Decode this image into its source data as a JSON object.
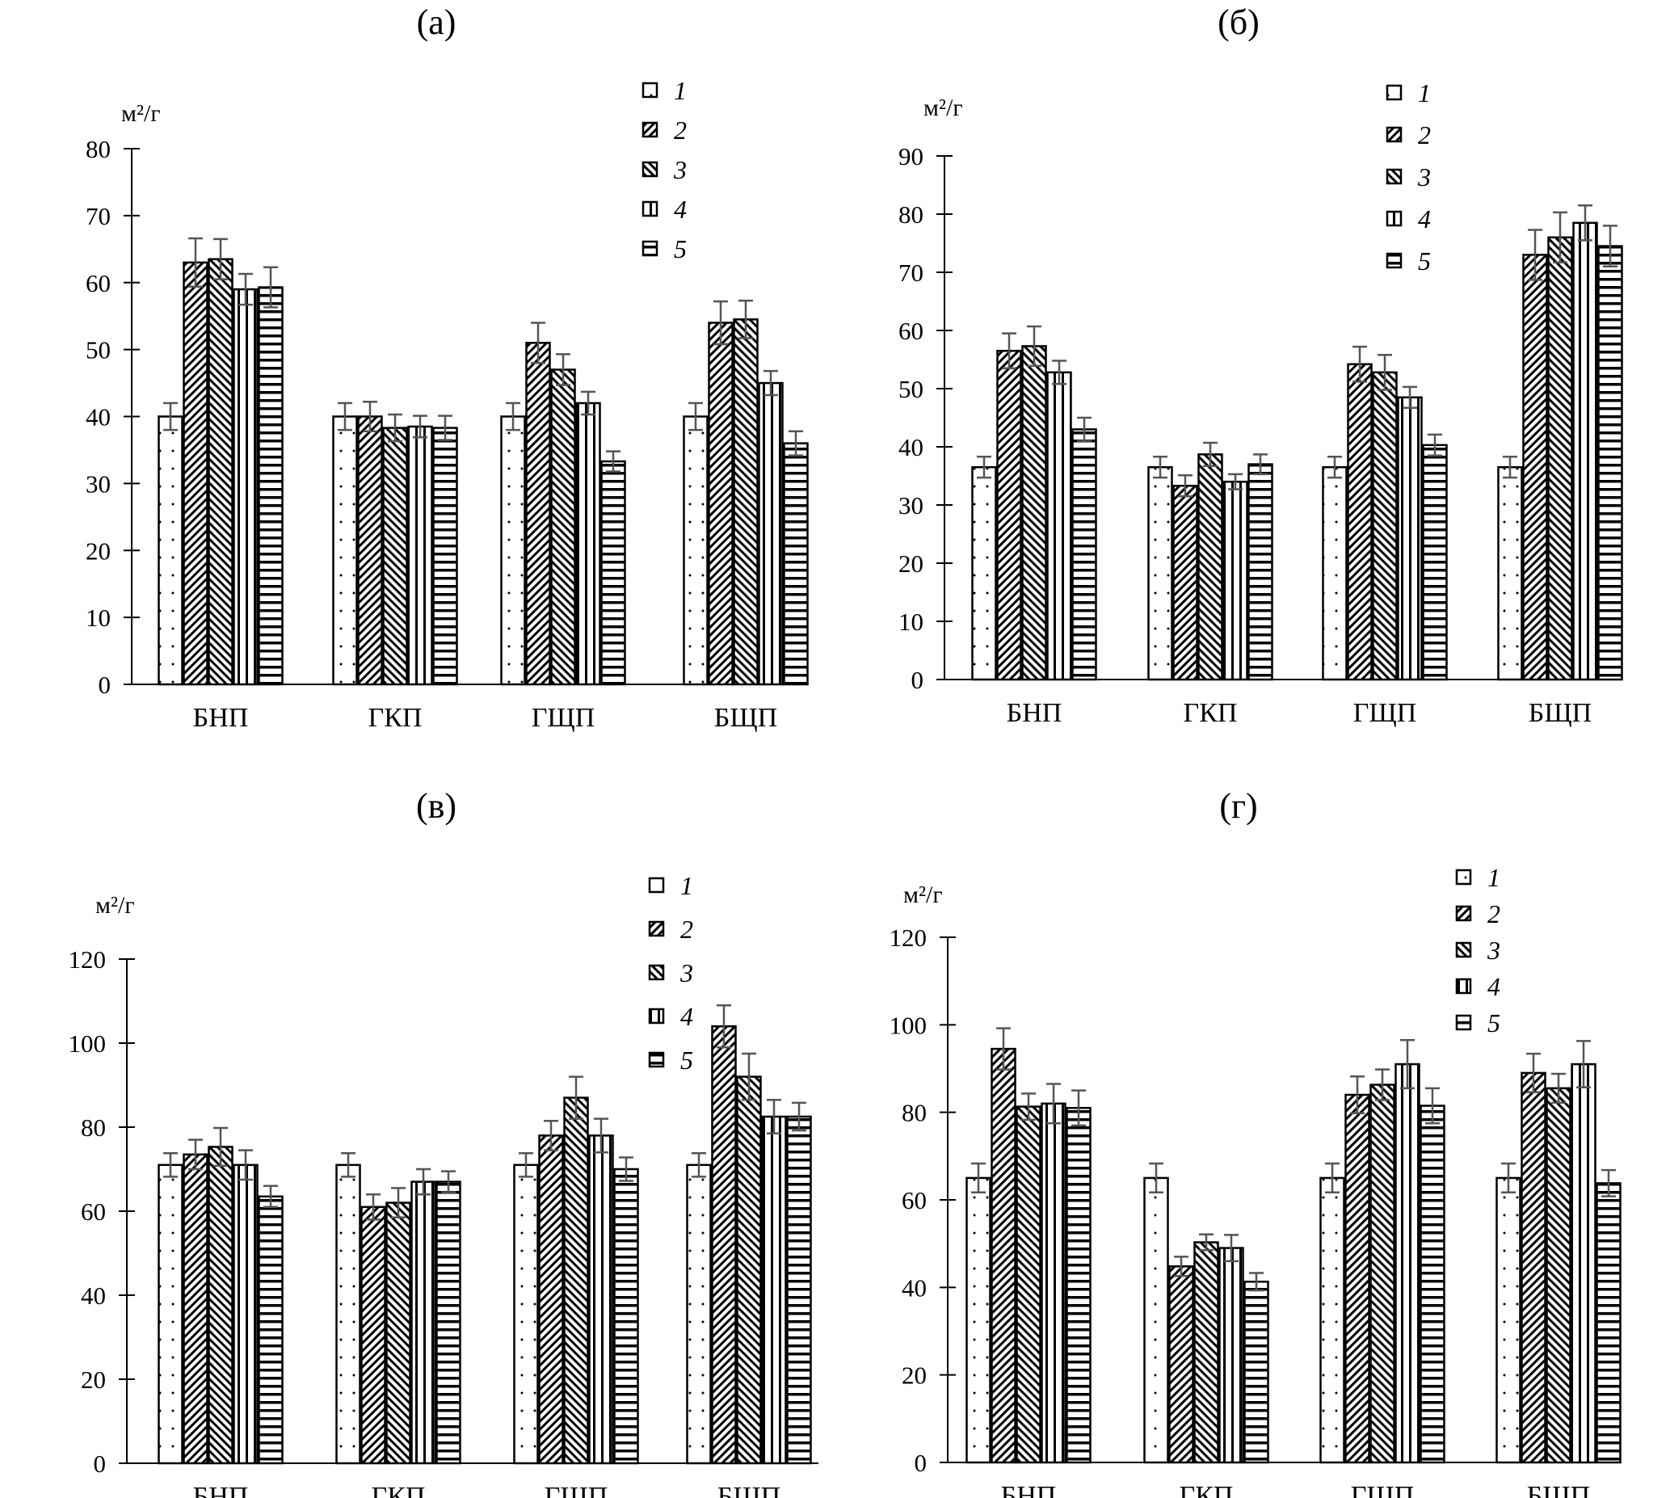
{
  "chart_data": [
    {
      "type": "bar",
      "title": "(а)",
      "ylabel": "м²/г",
      "ylim": [
        0,
        80
      ],
      "ytick_step": 10,
      "categories": [
        "БНП",
        "ГКП",
        "ГЩП",
        "БЩП"
      ],
      "legend_placement": "top-right",
      "series": [
        {
          "name": "1",
          "pattern": "dots",
          "values": [
            40,
            40,
            40,
            40
          ],
          "errors": [
            2,
            2,
            2,
            2
          ]
        },
        {
          "name": "2",
          "pattern": "diagonal-back",
          "values": [
            63,
            40,
            51,
            54
          ],
          "errors": [
            3.6,
            2.2,
            3,
            3.2
          ]
        },
        {
          "name": "3",
          "pattern": "diagonal-forward",
          "values": [
            63.5,
            38.3,
            47,
            54.5
          ],
          "errors": [
            3,
            2,
            2.3,
            2.8
          ]
        },
        {
          "name": "4",
          "pattern": "vertical",
          "values": [
            59,
            38.5,
            42,
            45
          ],
          "errors": [
            2.3,
            1.6,
            1.7,
            1.8
          ]
        },
        {
          "name": "5",
          "pattern": "horizontal",
          "values": [
            59.3,
            38.3,
            33.3,
            36
          ],
          "errors": [
            3,
            1.8,
            1.5,
            1.8
          ]
        }
      ]
    },
    {
      "type": "bar",
      "title": "(б)",
      "ylabel": "м²/г",
      "ylim": [
        0,
        90
      ],
      "ytick_step": 10,
      "categories": [
        "БНП",
        "ГКП",
        "ГЩП",
        "БЩП"
      ],
      "legend_placement": "top-right",
      "series": [
        {
          "name": "1",
          "pattern": "dots",
          "values": [
            36.5,
            36.5,
            36.5,
            36.5
          ],
          "errors": [
            1.8,
            1.8,
            1.8,
            1.8
          ]
        },
        {
          "name": "2",
          "pattern": "diagonal-back",
          "values": [
            56.5,
            33.3,
            54.2,
            73
          ],
          "errors": [
            3,
            1.8,
            3,
            4.3
          ]
        },
        {
          "name": "3",
          "pattern": "diagonal-forward",
          "values": [
            57.3,
            38.7,
            52.8,
            76
          ],
          "errors": [
            3.4,
            2,
            3,
            4.3
          ]
        },
        {
          "name": "4",
          "pattern": "vertical",
          "values": [
            52.8,
            34,
            48.5,
            78.5
          ],
          "errors": [
            2,
            1.3,
            1.8,
            3
          ]
        },
        {
          "name": "5",
          "pattern": "horizontal",
          "values": [
            43,
            37,
            40.3,
            74.5
          ],
          "errors": [
            2,
            1.7,
            1.8,
            3.5
          ]
        }
      ]
    },
    {
      "type": "bar",
      "title": "(в)",
      "ylabel": "м²/г",
      "ylim": [
        0,
        120
      ],
      "ytick_step": 20,
      "categories": [
        "БНП",
        "ГКП",
        "ГЩП",
        "БЩП"
      ],
      "legend_placement": "top-right",
      "series": [
        {
          "name": "1",
          "pattern": "dots",
          "values": [
            71,
            71,
            71,
            71
          ],
          "errors": [
            2.8,
            2.8,
            2.8,
            2.8
          ]
        },
        {
          "name": "2",
          "pattern": "diagonal-back",
          "values": [
            73.5,
            61,
            78,
            104
          ],
          "errors": [
            3.5,
            3,
            3.5,
            5
          ]
        },
        {
          "name": "3",
          "pattern": "diagonal-forward",
          "values": [
            75.3,
            62,
            87,
            92
          ],
          "errors": [
            4.5,
            3.5,
            5,
            5.5
          ]
        },
        {
          "name": "4",
          "pattern": "vertical",
          "values": [
            71,
            67,
            78,
            82.5
          ],
          "errors": [
            3.5,
            3,
            4,
            4
          ]
        },
        {
          "name": "5",
          "pattern": "horizontal",
          "values": [
            63.5,
            67,
            70,
            82.5
          ],
          "errors": [
            2.5,
            2.5,
            2.8,
            3.3
          ]
        }
      ]
    },
    {
      "type": "bar",
      "title": "(г)",
      "ylabel": "м²/г",
      "ylim": [
        0,
        120
      ],
      "ytick_step": 20,
      "categories": [
        "БНП",
        "ГКП",
        "ГЩП",
        "БЩП"
      ],
      "legend_placement": "top-right",
      "series": [
        {
          "name": "1",
          "pattern": "dots",
          "values": [
            65,
            65,
            65,
            65
          ],
          "errors": [
            3.3,
            3.3,
            3.3,
            3.3
          ]
        },
        {
          "name": "2",
          "pattern": "diagonal-back",
          "values": [
            94.5,
            44.8,
            84,
            89
          ],
          "errors": [
            4.7,
            2.2,
            4.2,
            4.4
          ]
        },
        {
          "name": "3",
          "pattern": "diagonal-forward",
          "values": [
            81.3,
            50.3,
            86.3,
            85.5
          ],
          "errors": [
            3,
            1.8,
            3.5,
            3.3
          ]
        },
        {
          "name": "4",
          "pattern": "vertical",
          "values": [
            82,
            49,
            91,
            91
          ],
          "errors": [
            4.5,
            3,
            5.5,
            5.3
          ]
        },
        {
          "name": "5",
          "pattern": "horizontal",
          "values": [
            81,
            41.3,
            81.5,
            63.8
          ],
          "errors": [
            4,
            2,
            4,
            3
          ]
        }
      ]
    }
  ],
  "colors": {
    "bar_outline": "#000000",
    "error_bar": "#555555",
    "background": "#ffffff"
  }
}
